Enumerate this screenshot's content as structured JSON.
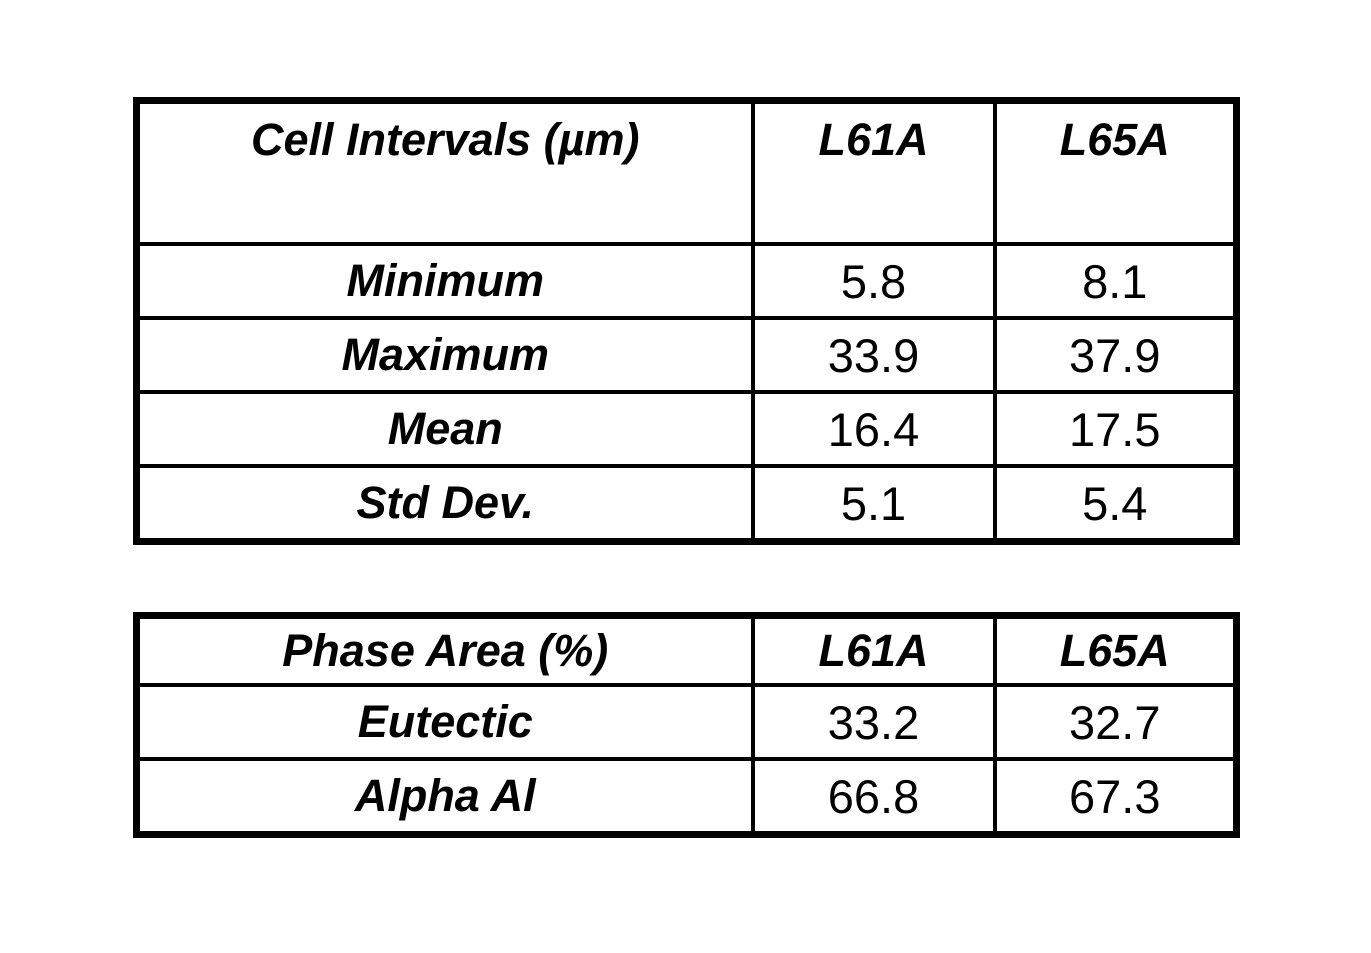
{
  "colors": {
    "background": "#ffffff",
    "border": "#000000",
    "text": "#000000"
  },
  "tables": [
    {
      "title": "Cell Intervals (µm)",
      "columns": [
        "L61A",
        "L65A"
      ],
      "rows": [
        {
          "label": "Minimum",
          "values": [
            "5.8",
            "8.1"
          ]
        },
        {
          "label": "Maximum",
          "values": [
            "33.9",
            "37.9"
          ]
        },
        {
          "label": "Mean",
          "values": [
            "16.4",
            "17.5"
          ]
        },
        {
          "label": "Std Dev.",
          "values": [
            "5.1",
            "5.4"
          ]
        }
      ]
    },
    {
      "title": "Phase Area (%)",
      "columns": [
        "L61A",
        "L65A"
      ],
      "rows": [
        {
          "label": "Eutectic",
          "values": [
            "33.2",
            "32.7"
          ]
        },
        {
          "label": "Alpha Al",
          "values": [
            "66.8",
            "67.3"
          ]
        }
      ]
    }
  ]
}
